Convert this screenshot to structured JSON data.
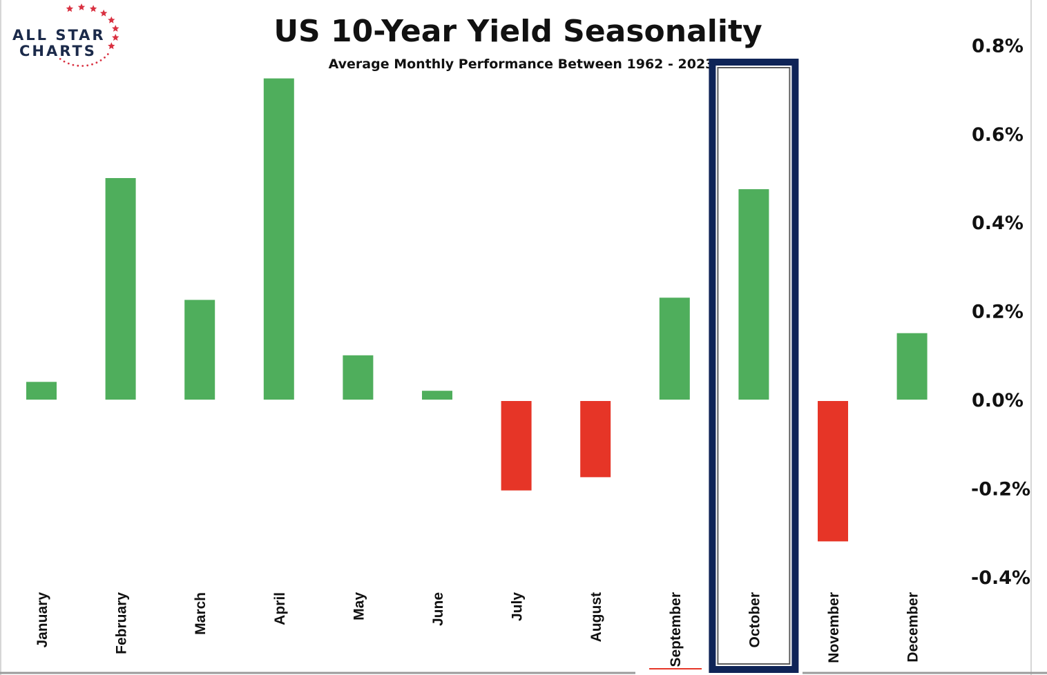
{
  "logo": {
    "line1": "ALL STAR",
    "line2": "CHARTS"
  },
  "colors": {
    "positive": "#4fae5c",
    "negative": "#e63527",
    "highlight": "#0f2457",
    "logo_navy": "#1b2a4a",
    "logo_red": "#d93040"
  },
  "chart_data": {
    "type": "bar",
    "title": "US 10-Year Yield Seasonality",
    "subtitle": "Average Monthly Performance Between 1962 - 2023",
    "categories": [
      "January",
      "February",
      "March",
      "April",
      "May",
      "June",
      "July",
      "August",
      "September",
      "October",
      "November",
      "December"
    ],
    "values": [
      0.04,
      0.5,
      0.225,
      0.725,
      0.1,
      0.02,
      -0.205,
      -0.175,
      0.23,
      0.475,
      -0.32,
      0.15
    ],
    "yticks": [
      "0.8%",
      "0.6%",
      "0.4%",
      "0.2%",
      "0.0%",
      "-0.2%",
      "-0.4%"
    ],
    "ytick_values": [
      0.8,
      0.6,
      0.4,
      0.2,
      0.0,
      -0.2,
      -0.4
    ],
    "ylim": [
      -0.4,
      0.8
    ],
    "y_axis_side": "right",
    "unit": "%",
    "highlighted_category": "October",
    "grid": false,
    "legend": "none"
  }
}
